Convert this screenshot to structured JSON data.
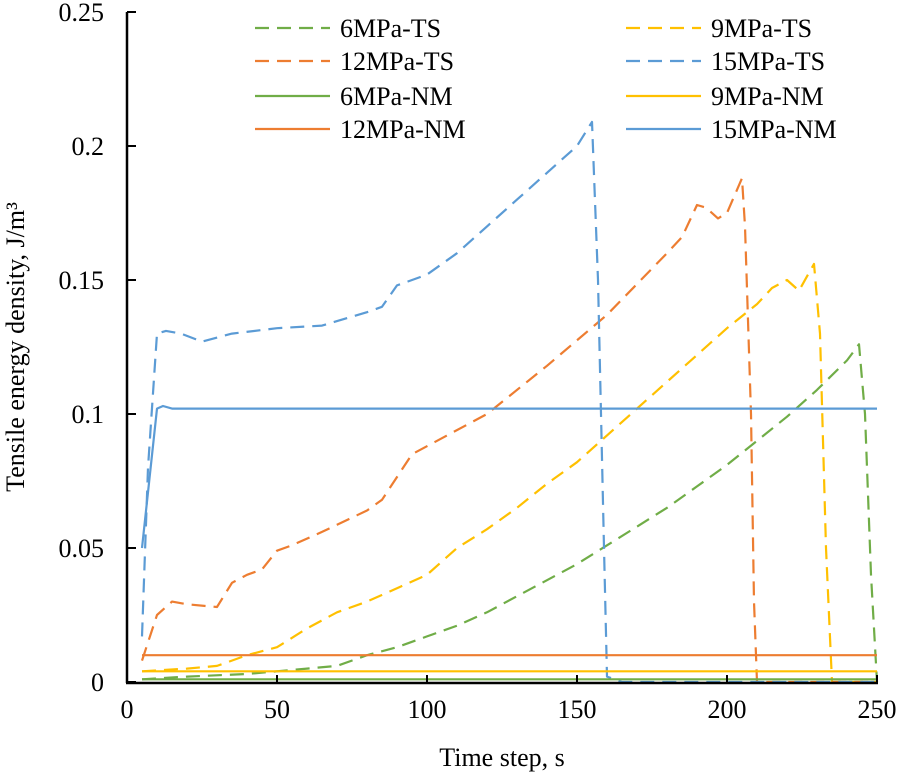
{
  "chart_data": {
    "type": "line",
    "title": "",
    "xlabel": "Time step, s",
    "ylabel": "Tensile energy density, J/m³",
    "xlim": [
      0,
      250
    ],
    "ylim": [
      0,
      0.25
    ],
    "xticks": [
      0,
      50,
      100,
      150,
      200,
      250
    ],
    "yticks": [
      0,
      0.05,
      0.1,
      0.15,
      0.2,
      0.25
    ],
    "ytick_labels": [
      "0",
      "0.05",
      "0.1",
      "0.15",
      "0.2",
      "0.25"
    ],
    "grid": false,
    "legend_position": "top",
    "series": [
      {
        "name": "6MPa-TS",
        "color": "#70AD47",
        "dash": true,
        "points": [
          [
            5,
            0.001
          ],
          [
            20,
            0.002
          ],
          [
            40,
            0.003
          ],
          [
            60,
            0.005
          ],
          [
            70,
            0.006
          ],
          [
            80,
            0.01
          ],
          [
            90,
            0.013
          ],
          [
            100,
            0.017
          ],
          [
            110,
            0.021
          ],
          [
            120,
            0.026
          ],
          [
            130,
            0.032
          ],
          [
            140,
            0.038
          ],
          [
            150,
            0.044
          ],
          [
            160,
            0.051
          ],
          [
            170,
            0.058
          ],
          [
            180,
            0.065
          ],
          [
            190,
            0.073
          ],
          [
            200,
            0.081
          ],
          [
            210,
            0.09
          ],
          [
            220,
            0.099
          ],
          [
            230,
            0.109
          ],
          [
            240,
            0.12
          ],
          [
            244,
            0.126
          ],
          [
            246,
            0.1
          ],
          [
            248,
            0.04
          ],
          [
            250,
            0
          ]
        ]
      },
      {
        "name": "9MPa-TS",
        "color": "#FFC000",
        "dash": true,
        "points": [
          [
            5,
            0.004
          ],
          [
            20,
            0.005
          ],
          [
            30,
            0.006
          ],
          [
            40,
            0.01
          ],
          [
            50,
            0.013
          ],
          [
            60,
            0.02
          ],
          [
            70,
            0.026
          ],
          [
            80,
            0.03
          ],
          [
            90,
            0.035
          ],
          [
            100,
            0.04
          ],
          [
            110,
            0.05
          ],
          [
            120,
            0.057
          ],
          [
            130,
            0.065
          ],
          [
            140,
            0.074
          ],
          [
            150,
            0.082
          ],
          [
            160,
            0.092
          ],
          [
            170,
            0.102
          ],
          [
            180,
            0.112
          ],
          [
            190,
            0.122
          ],
          [
            200,
            0.132
          ],
          [
            210,
            0.141
          ],
          [
            215,
            0.147
          ],
          [
            220,
            0.15
          ],
          [
            224,
            0.146
          ],
          [
            229,
            0.156
          ],
          [
            231,
            0.13
          ],
          [
            233,
            0.05
          ],
          [
            235,
            0
          ],
          [
            250,
            0
          ]
        ]
      },
      {
        "name": "12MPa-TS",
        "color": "#ED7D31",
        "dash": true,
        "points": [
          [
            5,
            0.008
          ],
          [
            10,
            0.025
          ],
          [
            15,
            0.03
          ],
          [
            20,
            0.029
          ],
          [
            30,
            0.028
          ],
          [
            35,
            0.037
          ],
          [
            40,
            0.04
          ],
          [
            45,
            0.042
          ],
          [
            50,
            0.049
          ],
          [
            55,
            0.051
          ],
          [
            65,
            0.056
          ],
          [
            80,
            0.064
          ],
          [
            85,
            0.068
          ],
          [
            95,
            0.085
          ],
          [
            100,
            0.088
          ],
          [
            120,
            0.1
          ],
          [
            140,
            0.118
          ],
          [
            160,
            0.137
          ],
          [
            180,
            0.16
          ],
          [
            185,
            0.166
          ],
          [
            190,
            0.178
          ],
          [
            193,
            0.177
          ],
          [
            197,
            0.173
          ],
          [
            200,
            0.175
          ],
          [
            205,
            0.188
          ],
          [
            206,
            0.17
          ],
          [
            208,
            0.1
          ],
          [
            209,
            0.03
          ],
          [
            210,
            0
          ],
          [
            250,
            0
          ]
        ]
      },
      {
        "name": "15MPa-TS",
        "color": "#5B9BD5",
        "dash": true,
        "points": [
          [
            5,
            0.017
          ],
          [
            7,
            0.08
          ],
          [
            10,
            0.13
          ],
          [
            13,
            0.131
          ],
          [
            18,
            0.13
          ],
          [
            25,
            0.127
          ],
          [
            35,
            0.13
          ],
          [
            50,
            0.132
          ],
          [
            65,
            0.133
          ],
          [
            80,
            0.138
          ],
          [
            85,
            0.14
          ],
          [
            90,
            0.148
          ],
          [
            100,
            0.152
          ],
          [
            110,
            0.16
          ],
          [
            120,
            0.17
          ],
          [
            130,
            0.18
          ],
          [
            140,
            0.19
          ],
          [
            150,
            0.2
          ],
          [
            155,
            0.209
          ],
          [
            157,
            0.15
          ],
          [
            159,
            0.05
          ],
          [
            160,
            0.002
          ],
          [
            165,
            0
          ],
          [
            250,
            0
          ]
        ]
      },
      {
        "name": "6MPa-NM",
        "color": "#70AD47",
        "dash": false,
        "points": [
          [
            5,
            0.001
          ],
          [
            250,
            0.001
          ]
        ]
      },
      {
        "name": "9MPa-NM",
        "color": "#FFC000",
        "dash": false,
        "points": [
          [
            5,
            0.004
          ],
          [
            250,
            0.004
          ]
        ]
      },
      {
        "name": "12MPa-NM",
        "color": "#ED7D31",
        "dash": false,
        "points": [
          [
            5,
            0.01
          ],
          [
            250,
            0.01
          ]
        ]
      },
      {
        "name": "15MPa-NM",
        "color": "#5B9BD5",
        "dash": false,
        "points": [
          [
            5,
            0.05
          ],
          [
            10,
            0.102
          ],
          [
            12,
            0.103
          ],
          [
            15,
            0.102
          ],
          [
            250,
            0.102
          ]
        ]
      }
    ]
  }
}
